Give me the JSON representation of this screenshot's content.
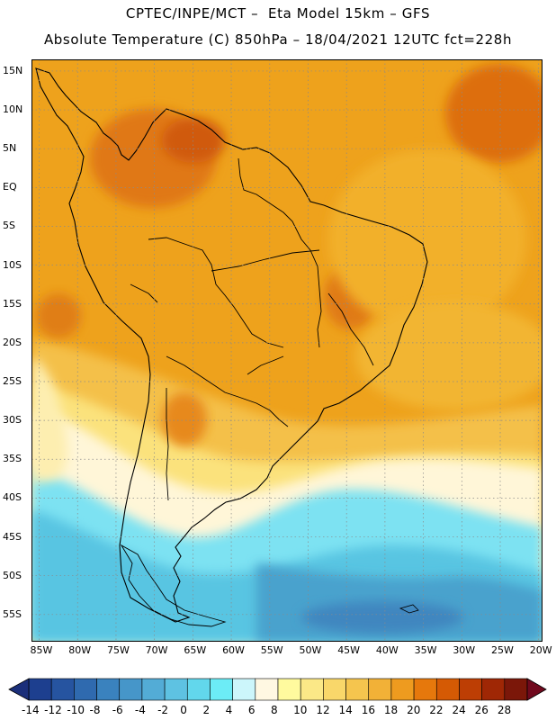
{
  "title": {
    "line1": "CPTEC/INPE/MCT –  Eta Model 15km – GFS",
    "line2": "Absolute Temperature (C) 850hPa – 18/04/2021 12UTC fct=228h"
  },
  "map": {
    "lat_labels": [
      "15N",
      "10N",
      "5N",
      "EQ",
      "5S",
      "10S",
      "15S",
      "20S",
      "25S",
      "30S",
      "35S",
      "40S",
      "45S",
      "50S",
      "55S"
    ],
    "lat_values": [
      15,
      10,
      5,
      0,
      -5,
      -10,
      -15,
      -20,
      -25,
      -30,
      -35,
      -40,
      -45,
      -50,
      -55
    ],
    "lat_range": [
      -58.5,
      16.5
    ],
    "lon_labels": [
      "85W",
      "80W",
      "75W",
      "70W",
      "65W",
      "60W",
      "55W",
      "50W",
      "45W",
      "40W",
      "35W",
      "30W",
      "25W",
      "20W"
    ],
    "lon_values": [
      -85,
      -80,
      -75,
      -70,
      -65,
      -60,
      -55,
      -50,
      -45,
      -40,
      -35,
      -30,
      -25,
      -20
    ],
    "lon_range": [
      -86,
      -19.5
    ],
    "grid": "dotted"
  },
  "colorbar": {
    "labels": [
      "-14",
      "-12",
      "-10",
      "-8",
      "-6",
      "-4",
      "-2",
      "0",
      "2",
      "4",
      "6",
      "8",
      "10",
      "12",
      "14",
      "16",
      "18",
      "20",
      "22",
      "24",
      "26",
      "28"
    ],
    "colors": [
      "#1d3f8f",
      "#2654a0",
      "#2f6aaf",
      "#3a82be",
      "#4696c9",
      "#53acd6",
      "#5ec2e2",
      "#62d7ec",
      "#6cecf6",
      "#ccf6fb",
      "#fff8e2",
      "#fffa9e",
      "#fbe887",
      "#f9d76a",
      "#f5c54e",
      "#f2b137",
      "#ee9b1f",
      "#e6780c",
      "#d55a04",
      "#bd3e04",
      "#9f2705",
      "#7b1709"
    ],
    "low_color": "#1b2f7a",
    "high_color": "#70091d"
  }
}
